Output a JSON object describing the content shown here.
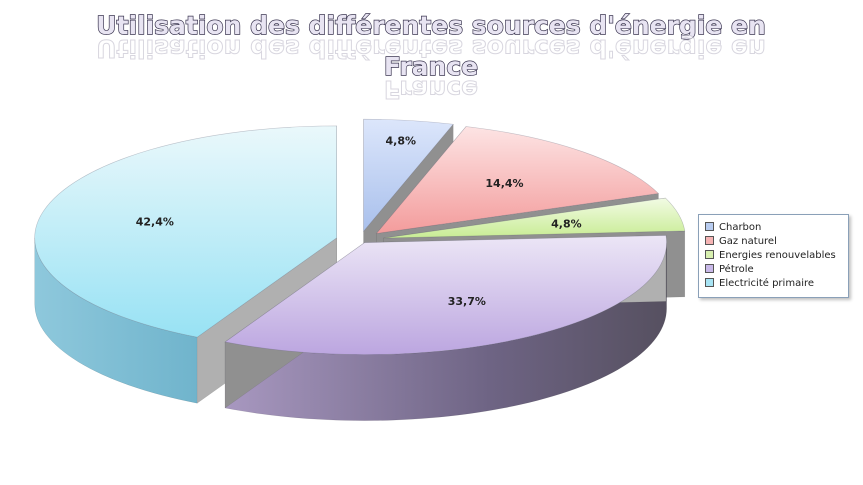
{
  "chart_data": {
    "type": "pie",
    "title_line1": "Utilisation des différentes sources d'énergie en",
    "title_line2": "France",
    "categories": [
      "Charbon",
      "Gaz naturel",
      "Energies renouvelables",
      "Pétrole",
      "Electricité primaire"
    ],
    "values": [
      4.8,
      14.4,
      4.8,
      33.7,
      42.4
    ],
    "labels": [
      "4,8%",
      "14,4%",
      "4,8%",
      "33,7%",
      "42,4%"
    ],
    "colors": [
      "#b8ccf0",
      "#f6b4b4",
      "#d8f0b0",
      "#c8b8e8",
      "#a8e4f4"
    ],
    "legend_position": "right",
    "exploded": true,
    "style": "3d"
  }
}
